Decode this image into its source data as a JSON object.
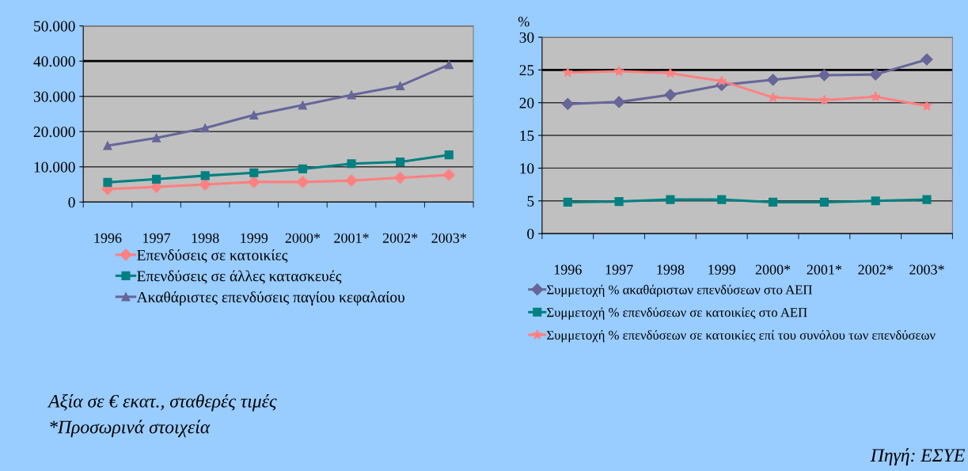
{
  "chart_data": [
    {
      "type": "line",
      "categories": [
        "1996",
        "1997",
        "1998",
        "1999",
        "2000*",
        "2001*",
        "2002*",
        "2003*"
      ],
      "series": [
        {
          "name": "Επενδύσεις σε κατοικίες",
          "color": "#ff8080",
          "marker": "diamond",
          "values": [
            3700,
            4300,
            5000,
            5700,
            5700,
            6100,
            6900,
            7700
          ]
        },
        {
          "name": "Επενδύσεις σε άλλες κατασκευές",
          "color": "#008080",
          "marker": "square",
          "values": [
            5600,
            6500,
            7500,
            8300,
            9400,
            10900,
            11400,
            13400
          ]
        },
        {
          "name": "Ακαθάριστες επενδύσεις παγίου κεφαλαίου",
          "color": "#666699",
          "marker": "triangle",
          "values": [
            16000,
            18200,
            21000,
            24700,
            27500,
            30400,
            33000,
            39000
          ]
        }
      ],
      "ylim": [
        0,
        50000
      ],
      "yticks": [
        0,
        {
          "value": 10000,
          "label": "10.000"
        },
        {
          "value": 20000,
          "label": "20.000"
        },
        {
          "value": 30000,
          "label": "30.000"
        },
        {
          "value": 40000,
          "label": "40.000"
        },
        {
          "value": 50000,
          "label": "50.000"
        }
      ],
      "ref_lines": [
        {
          "axis": "y",
          "value": 40000,
          "color": "#000000"
        }
      ],
      "grid": "y",
      "legend": "bottom",
      "annotations": [
        "Αξία σε € εκατ., σταθερές τιμές",
        "*Προσωρινά στοιχεία"
      ]
    },
    {
      "type": "line",
      "categories": [
        "1996",
        "1997",
        "1998",
        "1999",
        "2000*",
        "2001*",
        "2002*",
        "2003*"
      ],
      "ylabel": "%",
      "series": [
        {
          "name": "Συμμετοχή % ακαθάριστων επενδύσεων στο ΑΕΠ",
          "color": "#666699",
          "marker": "diamond",
          "values": [
            19.8,
            20.1,
            21.2,
            22.7,
            23.5,
            24.2,
            24.3,
            26.6
          ]
        },
        {
          "name": "Συμμετοχή % επενδύσεων σε κατοικίες στο ΑΕΠ",
          "color": "#008080",
          "marker": "square",
          "values": [
            4.8,
            4.9,
            5.2,
            5.2,
            4.8,
            4.8,
            5.0,
            5.2
          ]
        },
        {
          "name": "Συμμετοχή % επενδύσεων σε κατοικίες επί του συνόλου των επενδύσεων",
          "color": "#ff8080",
          "marker": "star",
          "values": [
            24.6,
            24.8,
            24.5,
            23.3,
            20.8,
            20.4,
            20.9,
            19.5
          ]
        }
      ],
      "ylim": [
        0,
        30
      ],
      "yticks": [
        0,
        5,
        10,
        15,
        20,
        25,
        30
      ],
      "ref_lines": [
        {
          "axis": "y",
          "value": 25,
          "color": "#000000"
        }
      ],
      "grid": "y",
      "legend": "bottom",
      "annotations": [
        "Πηγή: ΕΣΥΕ"
      ]
    }
  ]
}
